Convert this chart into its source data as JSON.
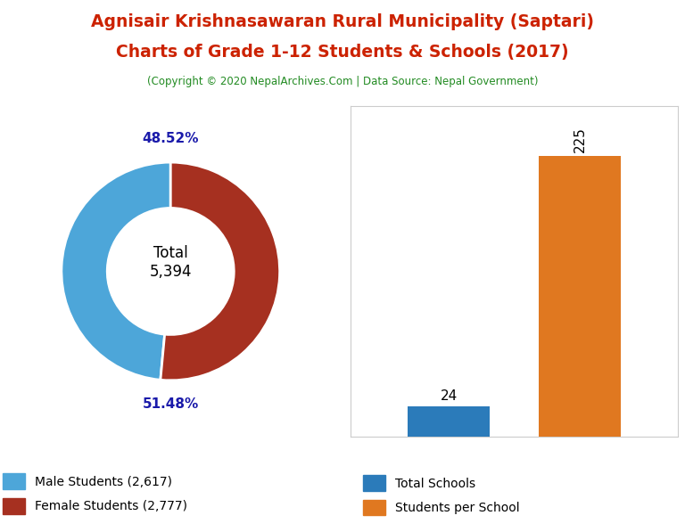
{
  "title_line1": "Agnisair Krishnasawaran Rural Municipality (Saptari)",
  "title_line2": "Charts of Grade 1-12 Students & Schools (2017)",
  "title_color": "#cc2200",
  "subtitle": "(Copyright © 2020 NepalArchives.Com | Data Source: Nepal Government)",
  "subtitle_color": "#228B22",
  "donut_values": [
    2617,
    2777
  ],
  "donut_colors": [
    "#4da6d9",
    "#a63020"
  ],
  "donut_labels": [
    "Male Students (2,617)",
    "Female Students (2,777)"
  ],
  "donut_pct_labels": [
    "48.52%",
    "51.48%"
  ],
  "donut_center_text": "Total\n5,394",
  "donut_pct_color": "#1a1aaa",
  "bar_categories": [
    "Total Schools",
    "Students per School"
  ],
  "bar_values": [
    24,
    225
  ],
  "bar_colors": [
    "#2b7bba",
    "#e07820"
  ],
  "bar_label_color": "#000000",
  "background_color": "#ffffff"
}
